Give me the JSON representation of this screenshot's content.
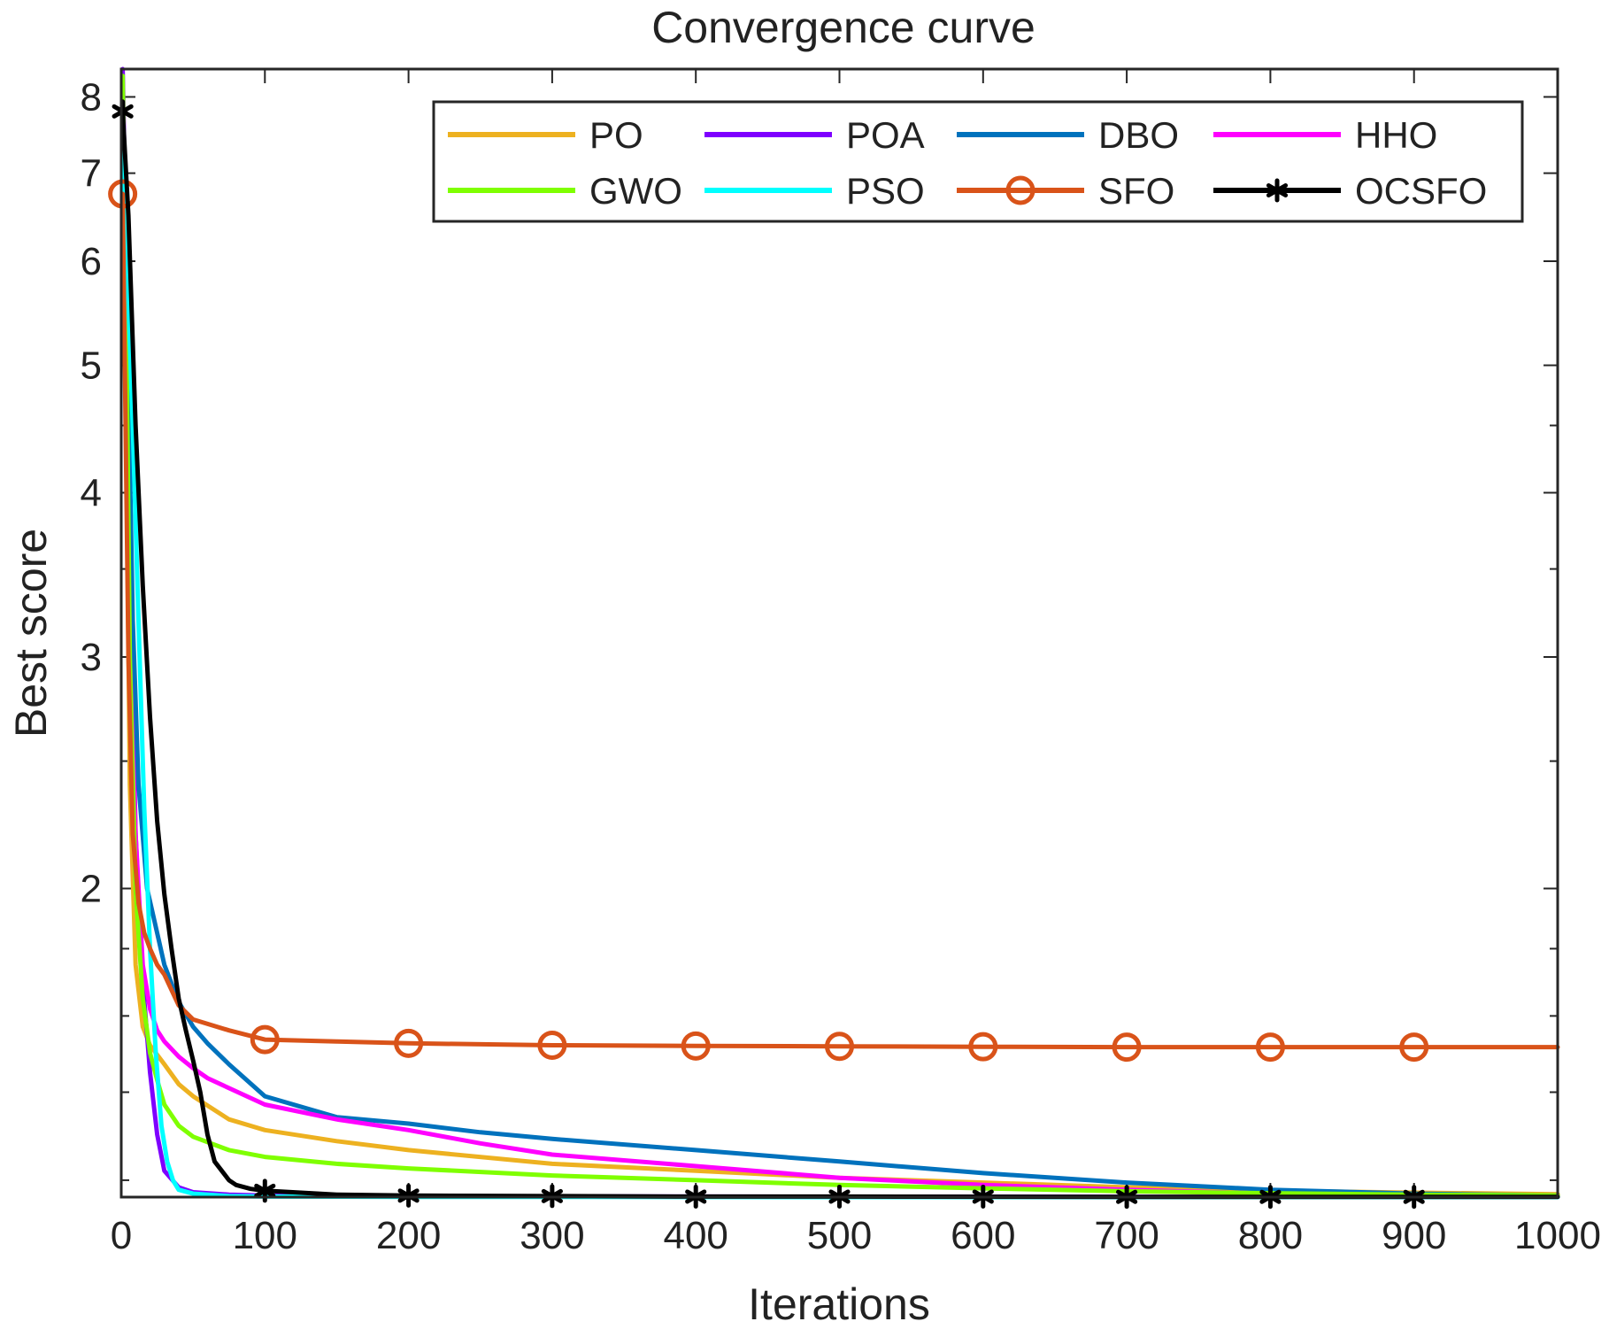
{
  "chart_data": {
    "type": "line",
    "title": "Convergence curve",
    "xlabel": "Iterations",
    "ylabel": "Best score",
    "xlim": [
      0,
      1000
    ],
    "ylim": [
      1.165,
      8.4
    ],
    "yscale": "log",
    "xticks": [
      0,
      100,
      200,
      300,
      400,
      500,
      600,
      700,
      800,
      900,
      1000
    ],
    "yticks": [
      2,
      3,
      4,
      5,
      6,
      7,
      8
    ],
    "legend_position": "top-right",
    "series": [
      {
        "name": "PO",
        "color": "#EDB120",
        "marker": "none",
        "points": [
          [
            1,
            7.8
          ],
          [
            3,
            5.0
          ],
          [
            6,
            2.4
          ],
          [
            10,
            1.75
          ],
          [
            15,
            1.57
          ],
          [
            20,
            1.52
          ],
          [
            30,
            1.47
          ],
          [
            40,
            1.42
          ],
          [
            50,
            1.39
          ],
          [
            75,
            1.335
          ],
          [
            100,
            1.31
          ],
          [
            150,
            1.285
          ],
          [
            200,
            1.265
          ],
          [
            300,
            1.235
          ],
          [
            400,
            1.22
          ],
          [
            500,
            1.205
          ],
          [
            600,
            1.195
          ],
          [
            700,
            1.185
          ],
          [
            800,
            1.178
          ],
          [
            900,
            1.174
          ],
          [
            1000,
            1.171
          ]
        ]
      },
      {
        "name": "POA",
        "color": "#7E00FF",
        "marker": "none",
        "points": [
          [
            1,
            8.4
          ],
          [
            3,
            6.5
          ],
          [
            6,
            3.5
          ],
          [
            10,
            2.2
          ],
          [
            15,
            1.7
          ],
          [
            20,
            1.45
          ],
          [
            25,
            1.3
          ],
          [
            30,
            1.22
          ],
          [
            40,
            1.185
          ],
          [
            50,
            1.175
          ],
          [
            75,
            1.17
          ],
          [
            100,
            1.168
          ],
          [
            200,
            1.167
          ],
          [
            400,
            1.166
          ],
          [
            700,
            1.1655
          ],
          [
            1000,
            1.165
          ]
        ]
      },
      {
        "name": "DBO",
        "color": "#0072BD",
        "marker": "none",
        "points": [
          [
            1,
            7.9
          ],
          [
            4,
            5.5
          ],
          [
            8,
            3.2
          ],
          [
            12,
            2.4
          ],
          [
            18,
            2.0
          ],
          [
            25,
            1.85
          ],
          [
            30,
            1.75
          ],
          [
            40,
            1.64
          ],
          [
            50,
            1.57
          ],
          [
            60,
            1.525
          ],
          [
            75,
            1.47
          ],
          [
            100,
            1.39
          ],
          [
            150,
            1.34
          ],
          [
            200,
            1.325
          ],
          [
            250,
            1.305
          ],
          [
            300,
            1.29
          ],
          [
            400,
            1.265
          ],
          [
            500,
            1.24
          ],
          [
            600,
            1.215
          ],
          [
            700,
            1.195
          ],
          [
            800,
            1.18
          ],
          [
            900,
            1.172
          ],
          [
            1000,
            1.168
          ]
        ]
      },
      {
        "name": "HHO",
        "color": "#FF00FF",
        "marker": "none",
        "points": [
          [
            1,
            7.6
          ],
          [
            3,
            5.2
          ],
          [
            6,
            3.0
          ],
          [
            10,
            2.2
          ],
          [
            15,
            1.75
          ],
          [
            20,
            1.62
          ],
          [
            25,
            1.56
          ],
          [
            30,
            1.53
          ],
          [
            40,
            1.49
          ],
          [
            50,
            1.46
          ],
          [
            60,
            1.435
          ],
          [
            75,
            1.41
          ],
          [
            100,
            1.37
          ],
          [
            150,
            1.335
          ],
          [
            200,
            1.31
          ],
          [
            250,
            1.28
          ],
          [
            300,
            1.255
          ],
          [
            400,
            1.23
          ],
          [
            500,
            1.205
          ],
          [
            600,
            1.19
          ],
          [
            700,
            1.18
          ],
          [
            800,
            1.172
          ],
          [
            900,
            1.169
          ],
          [
            1000,
            1.167
          ]
        ]
      },
      {
        "name": "GWO",
        "color": "#7FFF00",
        "marker": "none",
        "points": [
          [
            1,
            8.3
          ],
          [
            3,
            6.0
          ],
          [
            6,
            3.0
          ],
          [
            10,
            2.0
          ],
          [
            15,
            1.65
          ],
          [
            20,
            1.5
          ],
          [
            25,
            1.43
          ],
          [
            30,
            1.37
          ],
          [
            40,
            1.32
          ],
          [
            50,
            1.295
          ],
          [
            75,
            1.265
          ],
          [
            100,
            1.25
          ],
          [
            150,
            1.235
          ],
          [
            200,
            1.225
          ],
          [
            300,
            1.21
          ],
          [
            400,
            1.2
          ],
          [
            500,
            1.19
          ],
          [
            600,
            1.183
          ],
          [
            700,
            1.177
          ],
          [
            800,
            1.173
          ],
          [
            900,
            1.17
          ],
          [
            1000,
            1.168
          ]
        ]
      },
      {
        "name": "PSO",
        "color": "#00FFFF",
        "marker": "none",
        "points": [
          [
            1,
            7.6
          ],
          [
            4,
            6.0
          ],
          [
            8,
            4.5
          ],
          [
            12,
            3.2
          ],
          [
            16,
            2.3
          ],
          [
            20,
            1.8
          ],
          [
            24,
            1.5
          ],
          [
            28,
            1.32
          ],
          [
            32,
            1.24
          ],
          [
            36,
            1.2
          ],
          [
            40,
            1.18
          ],
          [
            50,
            1.172
          ],
          [
            75,
            1.167
          ],
          [
            100,
            1.166
          ],
          [
            200,
            1.1655
          ],
          [
            500,
            1.165
          ],
          [
            1000,
            1.165
          ]
        ]
      },
      {
        "name": "SFO",
        "color": "#D95319",
        "marker": "circle",
        "markers": [
          [
            1,
            6.75
          ],
          [
            100,
            1.535
          ],
          [
            200,
            1.525
          ],
          [
            300,
            1.52
          ],
          [
            400,
            1.518
          ],
          [
            500,
            1.517
          ],
          [
            600,
            1.516
          ],
          [
            700,
            1.515
          ],
          [
            800,
            1.515
          ],
          [
            900,
            1.515
          ]
        ],
        "points": [
          [
            1,
            6.75
          ],
          [
            3,
            4.5
          ],
          [
            5,
            3.0
          ],
          [
            8,
            2.2
          ],
          [
            12,
            1.95
          ],
          [
            16,
            1.85
          ],
          [
            20,
            1.8
          ],
          [
            25,
            1.75
          ],
          [
            30,
            1.72
          ],
          [
            40,
            1.63
          ],
          [
            50,
            1.59
          ],
          [
            75,
            1.56
          ],
          [
            100,
            1.535
          ],
          [
            150,
            1.53
          ],
          [
            200,
            1.525
          ],
          [
            300,
            1.52
          ],
          [
            400,
            1.518
          ],
          [
            500,
            1.517
          ],
          [
            600,
            1.516
          ],
          [
            700,
            1.515
          ],
          [
            800,
            1.515
          ],
          [
            900,
            1.515
          ],
          [
            1000,
            1.515
          ]
        ]
      },
      {
        "name": "OCSFO",
        "color": "#000000",
        "marker": "asterisk",
        "markers": [
          [
            1,
            7.8
          ],
          [
            100,
            1.178
          ],
          [
            200,
            1.168
          ],
          [
            300,
            1.167
          ],
          [
            400,
            1.166
          ],
          [
            500,
            1.166
          ],
          [
            600,
            1.166
          ],
          [
            700,
            1.1655
          ],
          [
            800,
            1.1655
          ],
          [
            900,
            1.1655
          ]
        ],
        "points": [
          [
            1,
            7.8
          ],
          [
            5,
            6.5
          ],
          [
            10,
            4.5
          ],
          [
            15,
            3.4
          ],
          [
            20,
            2.7
          ],
          [
            25,
            2.25
          ],
          [
            30,
            1.98
          ],
          [
            35,
            1.8
          ],
          [
            40,
            1.65
          ],
          [
            45,
            1.56
          ],
          [
            50,
            1.48
          ],
          [
            55,
            1.4
          ],
          [
            60,
            1.3
          ],
          [
            65,
            1.24
          ],
          [
            70,
            1.22
          ],
          [
            75,
            1.2
          ],
          [
            80,
            1.19
          ],
          [
            90,
            1.182
          ],
          [
            100,
            1.178
          ],
          [
            150,
            1.17
          ],
          [
            200,
            1.168
          ],
          [
            300,
            1.167
          ],
          [
            400,
            1.166
          ],
          [
            500,
            1.166
          ],
          [
            700,
            1.1655
          ],
          [
            900,
            1.1655
          ],
          [
            1000,
            1.1655
          ]
        ]
      }
    ]
  }
}
